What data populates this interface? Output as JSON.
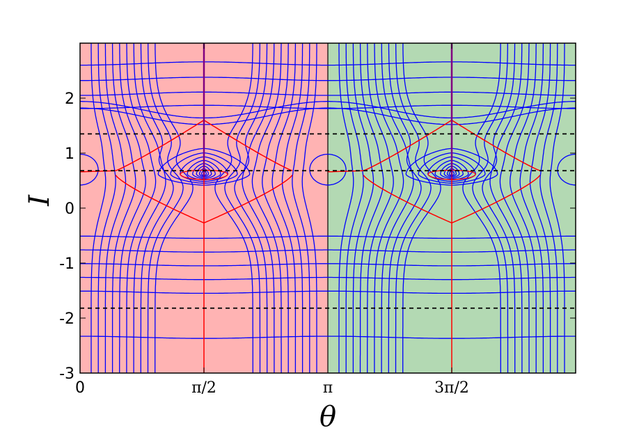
{
  "chart_data": {
    "type": "line",
    "title": "",
    "xlabel": "θ",
    "ylabel": "I",
    "xlim": [
      0,
      6.2832
    ],
    "ylim": [
      -3,
      3
    ],
    "x_ticks": [
      {
        "value": 0,
        "label": "0"
      },
      {
        "value": 1.5708,
        "label": "π/2"
      },
      {
        "value": 3.1416,
        "label": "π"
      },
      {
        "value": 4.7124,
        "label": "3π/2"
      }
    ],
    "y_ticks": [
      {
        "value": 2,
        "label": "2"
      },
      {
        "value": 1,
        "label": "1"
      },
      {
        "value": 0,
        "label": "0"
      },
      {
        "value": -1,
        "label": "-1"
      },
      {
        "value": -2,
        "label": "-2"
      },
      {
        "value": -3,
        "label": "-3"
      }
    ],
    "regions": [
      {
        "x_range": [
          0,
          3.1416
        ],
        "color": "#ffb3b3"
      },
      {
        "x_range": [
          3.1416,
          6.2832
        ],
        "color": "#b3d9b3"
      }
    ],
    "dashed_levels": [
      1.35,
      0.68,
      -1.82
    ],
    "vertical_lines": [
      1.5708,
      4.7124
    ],
    "outer_contour_levels": [
      2.63,
      2.35,
      2.08,
      1.84,
      -0.53,
      -0.78,
      -1.03,
      -1.28,
      -1.53,
      -2.35
    ],
    "open_contour_amplitudes": [
      0.66,
      0.7,
      0.75,
      0.78,
      0.8,
      0.82,
      0.84,
      0.85,
      0.85,
      0.84
    ],
    "open_contour_levels_upper": [
      1.72,
      1.6
    ],
    "closed_contour_sizes": [
      0.38,
      0.62,
      0.9,
      1.2,
      1.55,
      1.95,
      2.4,
      2.9
    ],
    "separatrix": {
      "top": 1.6,
      "bottom": -0.27,
      "side_level": 0.68
    },
    "colors": {
      "contour": "#0000ff",
      "separatrix": "#ff0000",
      "vertical": "#800080",
      "dashed": "#000000",
      "pink_region": "#ffb3b3",
      "green_region": "#b3d9b3"
    }
  }
}
